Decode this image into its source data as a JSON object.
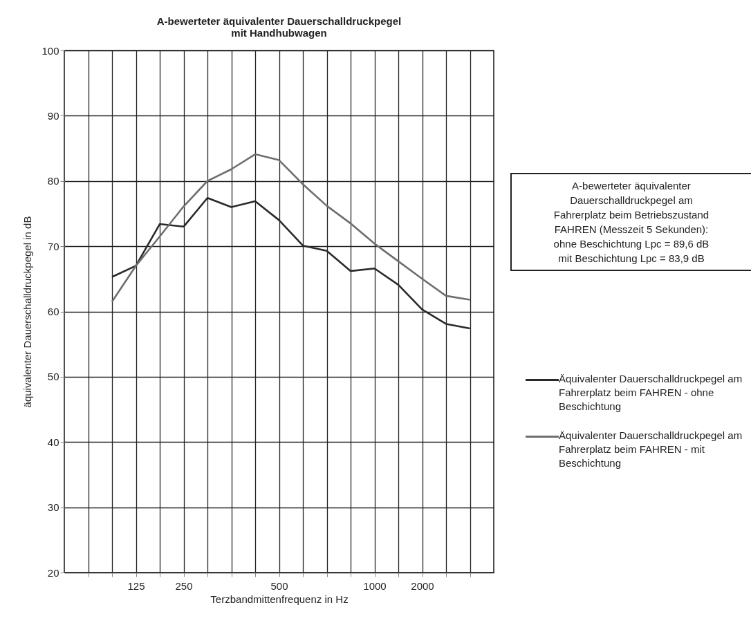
{
  "chart_data": {
    "type": "line",
    "title": "A-bewerteter äquivalenter Dauerschalldruckpegel\nmit Handhubwagen",
    "xlabel": "Terzbandmittenfrequenz in Hz",
    "ylabel": "äquivalenter Dauerschalldruckpegel in dB",
    "categories": [
      null,
      null,
      "125",
      null,
      "250",
      null,
      null,
      null,
      "500",
      null,
      null,
      null,
      "1000",
      null,
      "2000",
      null,
      null
    ],
    "series": [
      {
        "name": "Äquivalenter Dauerschalldruckpegel am Fahrerplatz beim FAHREN - ohne Beschichtung",
        "color": "#2a2a2a",
        "values": [
          null,
          65.3,
          67.0,
          73.4,
          73.0,
          77.4,
          76.0,
          76.9,
          74.0,
          70.1,
          69.3,
          66.2,
          66.6,
          64.1,
          60.3,
          58.1,
          57.4
        ]
      },
      {
        "name": "Äquivalenter Dauerschalldruckpegel am Fahrerplatz beim FAHREN - mit Beschichtung",
        "color": "#6e6e6e",
        "values": [
          null,
          61.5,
          67.0,
          71.5,
          76.1,
          80.0,
          81.8,
          84.1,
          83.2,
          79.5,
          76.2,
          73.5,
          70.4,
          67.7,
          65.0,
          62.4,
          61.8
        ]
      }
    ],
    "ylim": [
      20,
      100
    ],
    "yticks": [
      20,
      30,
      40,
      50,
      60,
      70,
      80,
      90,
      100
    ],
    "grid": true,
    "legend": "right",
    "annotations": [
      "A-bewerteter äquivalenter\nDauerschalldruckpegel am\nFahrerplatz beim Betriebszustand\nFAHREN (Messzeit 5 Sekunden):\nohne Beschichtung Lpc = 89,6 dB\nmit Beschichtung Lpc = 83,9 dB"
    ]
  }
}
